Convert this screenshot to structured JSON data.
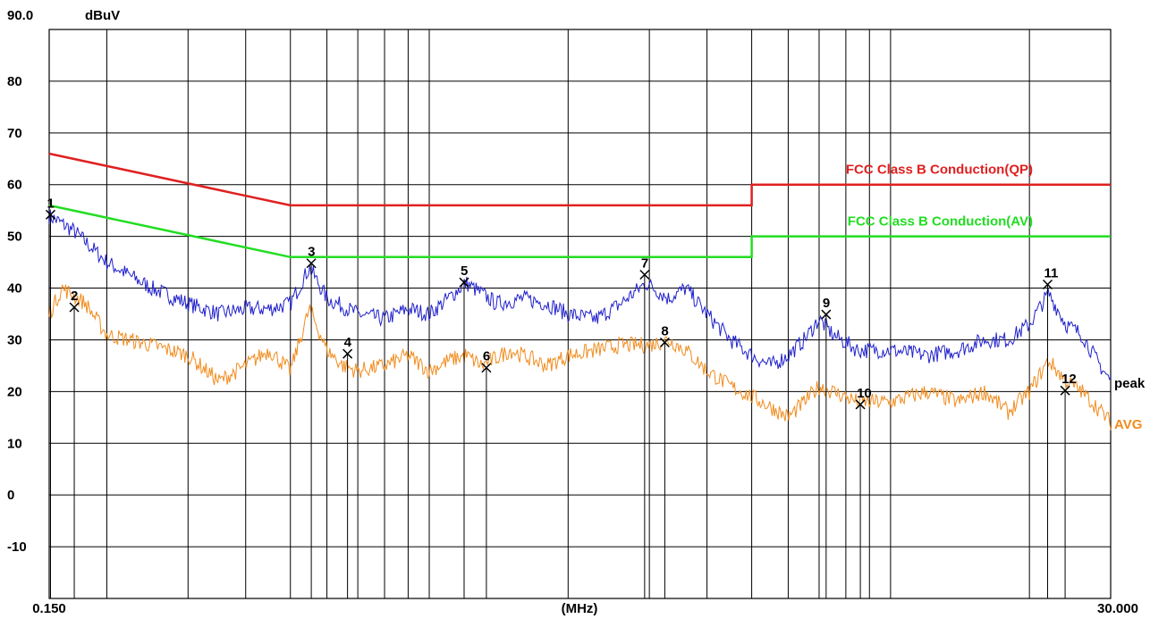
{
  "chart_data": {
    "type": "line",
    "y_unit_label": "dBuV",
    "x_unit_label": "(MHz)",
    "x_scale": "log",
    "xlim": [
      0.15,
      30
    ],
    "ylim": [
      -20,
      90
    ],
    "x_min_label": "0.150",
    "x_max_label": "30.000",
    "y_ticks": [
      {
        "value": 90,
        "label": "90.0"
      },
      {
        "value": 80,
        "label": "80"
      },
      {
        "value": 70,
        "label": "70"
      },
      {
        "value": 60,
        "label": "60"
      },
      {
        "value": 50,
        "label": "50"
      },
      {
        "value": 40,
        "label": "40"
      },
      {
        "value": 30,
        "label": "30"
      },
      {
        "value": 20,
        "label": "20"
      },
      {
        "value": 10,
        "label": "10"
      },
      {
        "value": 0,
        "label": "0"
      },
      {
        "value": -10,
        "label": "-10"
      }
    ],
    "x_gridlines_mhz": [
      0.2,
      0.3,
      0.4,
      0.5,
      0.6,
      0.7,
      0.8,
      0.9,
      1,
      2,
      3,
      4,
      5,
      6,
      7,
      8,
      9,
      10,
      20,
      30
    ],
    "grid": true,
    "limit_lines": [
      {
        "name": "FCC Class B Conduction(QP)",
        "color": "#e02020",
        "points": [
          [
            0.15,
            66
          ],
          [
            0.5,
            56
          ],
          [
            5,
            56
          ],
          [
            5,
            60
          ],
          [
            30,
            60
          ]
        ]
      },
      {
        "name": "FCC Class B Conduction(AV)",
        "color": "#22dd22",
        "points": [
          [
            0.15,
            56
          ],
          [
            0.5,
            46
          ],
          [
            5,
            46
          ],
          [
            5,
            50
          ],
          [
            30,
            50
          ]
        ]
      }
    ],
    "series": [
      {
        "name": "peak",
        "color": "#2020cc",
        "points": [
          [
            0.15,
            54
          ],
          [
            0.17,
            51
          ],
          [
            0.2,
            45
          ],
          [
            0.25,
            40
          ],
          [
            0.3,
            37
          ],
          [
            0.35,
            35
          ],
          [
            0.4,
            36
          ],
          [
            0.45,
            36
          ],
          [
            0.5,
            37
          ],
          [
            0.55,
            44
          ],
          [
            0.6,
            38
          ],
          [
            0.7,
            35
          ],
          [
            0.8,
            34
          ],
          [
            0.9,
            36
          ],
          [
            1.0,
            35
          ],
          [
            1.1,
            38
          ],
          [
            1.2,
            41
          ],
          [
            1.4,
            37
          ],
          [
            1.6,
            38
          ],
          [
            1.8,
            37
          ],
          [
            2.0,
            35
          ],
          [
            2.3,
            34
          ],
          [
            2.6,
            37
          ],
          [
            2.95,
            41
          ],
          [
            3.3,
            38
          ],
          [
            3.6,
            40
          ],
          [
            4.0,
            35
          ],
          [
            4.5,
            30
          ],
          [
            5.0,
            27
          ],
          [
            5.5,
            25
          ],
          [
            6.0,
            27
          ],
          [
            6.5,
            30
          ],
          [
            7.0,
            34
          ],
          [
            7.5,
            31
          ],
          [
            8.5,
            28
          ],
          [
            10,
            28
          ],
          [
            12,
            27
          ],
          [
            14,
            28
          ],
          [
            16,
            30
          ],
          [
            18,
            30
          ],
          [
            20,
            33
          ],
          [
            22,
            39
          ],
          [
            24,
            33
          ],
          [
            26,
            31
          ],
          [
            28,
            26
          ],
          [
            30,
            22
          ]
        ]
      },
      {
        "name": "AVG",
        "color": "#f08c1e",
        "points": [
          [
            0.15,
            35
          ],
          [
            0.16,
            40
          ],
          [
            0.18,
            37
          ],
          [
            0.2,
            31
          ],
          [
            0.25,
            29
          ],
          [
            0.3,
            27
          ],
          [
            0.35,
            22
          ],
          [
            0.4,
            25
          ],
          [
            0.45,
            28
          ],
          [
            0.5,
            24
          ],
          [
            0.55,
            36
          ],
          [
            0.6,
            28
          ],
          [
            0.65,
            25
          ],
          [
            0.7,
            24
          ],
          [
            0.8,
            25
          ],
          [
            0.9,
            27
          ],
          [
            1.0,
            24
          ],
          [
            1.1,
            26
          ],
          [
            1.2,
            27
          ],
          [
            1.3,
            25
          ],
          [
            1.5,
            28
          ],
          [
            1.8,
            25
          ],
          [
            2.0,
            27
          ],
          [
            2.3,
            28
          ],
          [
            2.6,
            29
          ],
          [
            3.0,
            29
          ],
          [
            3.3,
            30
          ],
          [
            3.6,
            28
          ],
          [
            4.0,
            24
          ],
          [
            4.5,
            21
          ],
          [
            5.0,
            19
          ],
          [
            5.5,
            17
          ],
          [
            6.0,
            15
          ],
          [
            6.5,
            18
          ],
          [
            7.0,
            21
          ],
          [
            7.5,
            20
          ],
          [
            8.5,
            18
          ],
          [
            10,
            18
          ],
          [
            12,
            20
          ],
          [
            14,
            18
          ],
          [
            16,
            20
          ],
          [
            18,
            16
          ],
          [
            20,
            20
          ],
          [
            22,
            26
          ],
          [
            24,
            22
          ],
          [
            26,
            20
          ],
          [
            28,
            17
          ],
          [
            30,
            14
          ]
        ]
      }
    ],
    "markers": [
      {
        "label": "1",
        "x": 0.151,
        "y": 54.2
      },
      {
        "label": "2",
        "x": 0.17,
        "y": 36.3
      },
      {
        "label": "3",
        "x": 0.555,
        "y": 44.8
      },
      {
        "label": "4",
        "x": 0.665,
        "y": 27.3
      },
      {
        "label": "5",
        "x": 1.19,
        "y": 41.1
      },
      {
        "label": "6",
        "x": 1.33,
        "y": 24.6
      },
      {
        "label": "7",
        "x": 2.93,
        "y": 42.6
      },
      {
        "label": "8",
        "x": 3.24,
        "y": 29.5
      },
      {
        "label": "9",
        "x": 7.25,
        "y": 34.9
      },
      {
        "label": "10",
        "x": 8.6,
        "y": 17.5
      },
      {
        "label": "11",
        "x": 21.9,
        "y": 40.7
      },
      {
        "label": "12",
        "x": 23.9,
        "y": 20.2
      }
    ]
  }
}
